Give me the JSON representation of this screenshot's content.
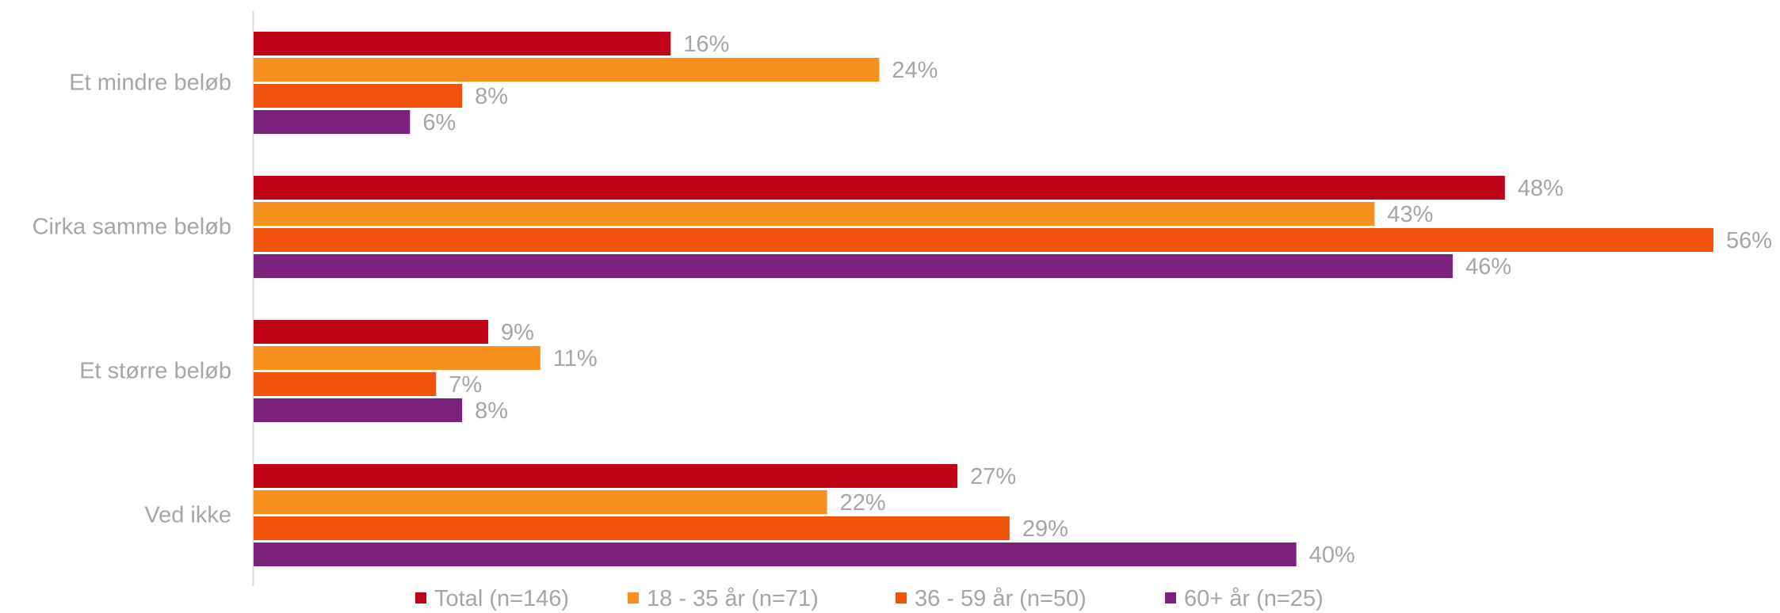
{
  "chart_data": {
    "type": "bar",
    "orientation": "horizontal",
    "categories": [
      "Et mindre beløb",
      "Cirka samme beløb",
      "Et større beløb",
      "Ved ikke"
    ],
    "series": [
      {
        "name": "Total (n=146)",
        "color": "#c00418",
        "values": [
          16,
          48,
          9,
          27
        ],
        "labels": [
          "16%",
          "48%",
          "9%",
          "27%"
        ]
      },
      {
        "name": "18 - 35 år (n=71)",
        "color": "#f7901e",
        "values": [
          24,
          43,
          11,
          22
        ],
        "labels": [
          "24%",
          "43%",
          "11%",
          "22%"
        ]
      },
      {
        "name": "36 - 59 år (n=50)",
        "color": "#f0540c",
        "values": [
          8,
          56,
          7,
          29
        ],
        "labels": [
          "8%",
          "56%",
          "7%",
          "29%"
        ]
      },
      {
        "name": "60+ år (n=25)",
        "color": "#7b217e",
        "values": [
          6,
          46,
          8,
          40
        ],
        "labels": [
          "6%",
          "46%",
          "8%",
          "40%"
        ]
      }
    ],
    "unit": "%",
    "xlim": [
      0,
      56
    ],
    "grid": false,
    "legend_position": "bottom"
  }
}
